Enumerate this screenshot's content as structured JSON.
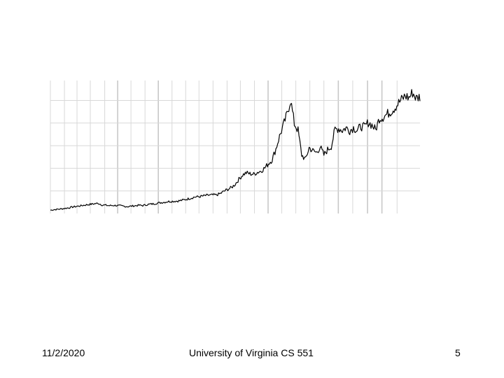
{
  "slide": {
    "date": "11/2/2020",
    "course": "University of Virginia CS 551",
    "page": "5"
  },
  "chart_data": {
    "type": "line",
    "title": "",
    "xlabel": "",
    "ylabel": "",
    "axes_labels_shown": false,
    "grid": true,
    "line_color": "#000000",
    "grid_color": "#d8d8d8",
    "major_grid_color": "#c8c8c8",
    "xlim": [
      0,
      100
    ],
    "ylim": [
      0,
      100
    ],
    "vertical_gridlines": [
      0,
      3.8,
      7.2,
      10.8,
      14.7,
      18.2,
      21.8,
      25.6,
      29.2,
      32.9,
      36.6,
      40.2,
      44.0,
      47.8,
      51.4,
      55.2,
      58.9,
      62.6,
      66.4,
      70.2,
      74.0,
      77.9,
      81.8,
      85.8,
      89.7,
      93.8
    ],
    "major_vertical_gridlines": [
      18.2,
      29.2,
      58.9,
      77.9,
      85.8,
      89.7
    ],
    "horizontal_gridlines": [
      17,
      34,
      51,
      68,
      85
    ],
    "series": [
      {
        "x": [
          0,
          1,
          2,
          3,
          4,
          5,
          6,
          7,
          8,
          9,
          10,
          11,
          12,
          13,
          14,
          15,
          16,
          17,
          18,
          19,
          20,
          21,
          22,
          23,
          24,
          25,
          26,
          27,
          28,
          29,
          30,
          31,
          32,
          33,
          34,
          35,
          36,
          37,
          38,
          39,
          40,
          41,
          42,
          43,
          44,
          45,
          46,
          47,
          48,
          49,
          50,
          51,
          52,
          53,
          54,
          55,
          56,
          57,
          58,
          59,
          60,
          61,
          62,
          63,
          64,
          65,
          66,
          67,
          68,
          69,
          70,
          71,
          72,
          73,
          74,
          75,
          76,
          77,
          78,
          79,
          80,
          81,
          82,
          83,
          84,
          85,
          86,
          87,
          88,
          89,
          90,
          91,
          92,
          93,
          94,
          95,
          96,
          97,
          98,
          99,
          100
        ],
        "y": [
          2.5,
          2.9,
          3.2,
          3.5,
          3.9,
          4.3,
          4.9,
          5.3,
          5.7,
          6.2,
          6.6,
          7.0,
          7.4,
          7.6,
          6.4,
          6.2,
          5.9,
          6.1,
          6.0,
          5.8,
          5.4,
          5.2,
          5.6,
          5.9,
          6.2,
          6.0,
          6.6,
          7.0,
          7.3,
          7.8,
          8.2,
          8.6,
          9.0,
          9.2,
          9.3,
          9.6,
          10.2,
          10.8,
          11.6,
          12.4,
          12.6,
          13.0,
          13.5,
          13.8,
          13.9,
          14.0,
          15.0,
          16.8,
          18.2,
          19.5,
          22.0,
          25.8,
          29.0,
          30.6,
          29.9,
          29.5,
          31.0,
          32.0,
          34.3,
          37.5,
          40.5,
          48.5,
          58.0,
          66.0,
          74.5,
          85.5,
          67.5,
          62.5,
          44.0,
          40.5,
          49.5,
          47.2,
          45.8,
          50.0,
          44.0,
          48.0,
          50.5,
          63.0,
          64.0,
          62.5,
          64.5,
          62.5,
          64.5,
          62.5,
          65.5,
          65.0,
          68.5,
          66.5,
          63.0,
          71.5,
          72.5,
          74.5,
          76.5,
          79.0,
          82.5,
          85.5,
          88.5,
          87.0,
          91.0,
          86.5,
          88.0
        ]
      }
    ]
  }
}
